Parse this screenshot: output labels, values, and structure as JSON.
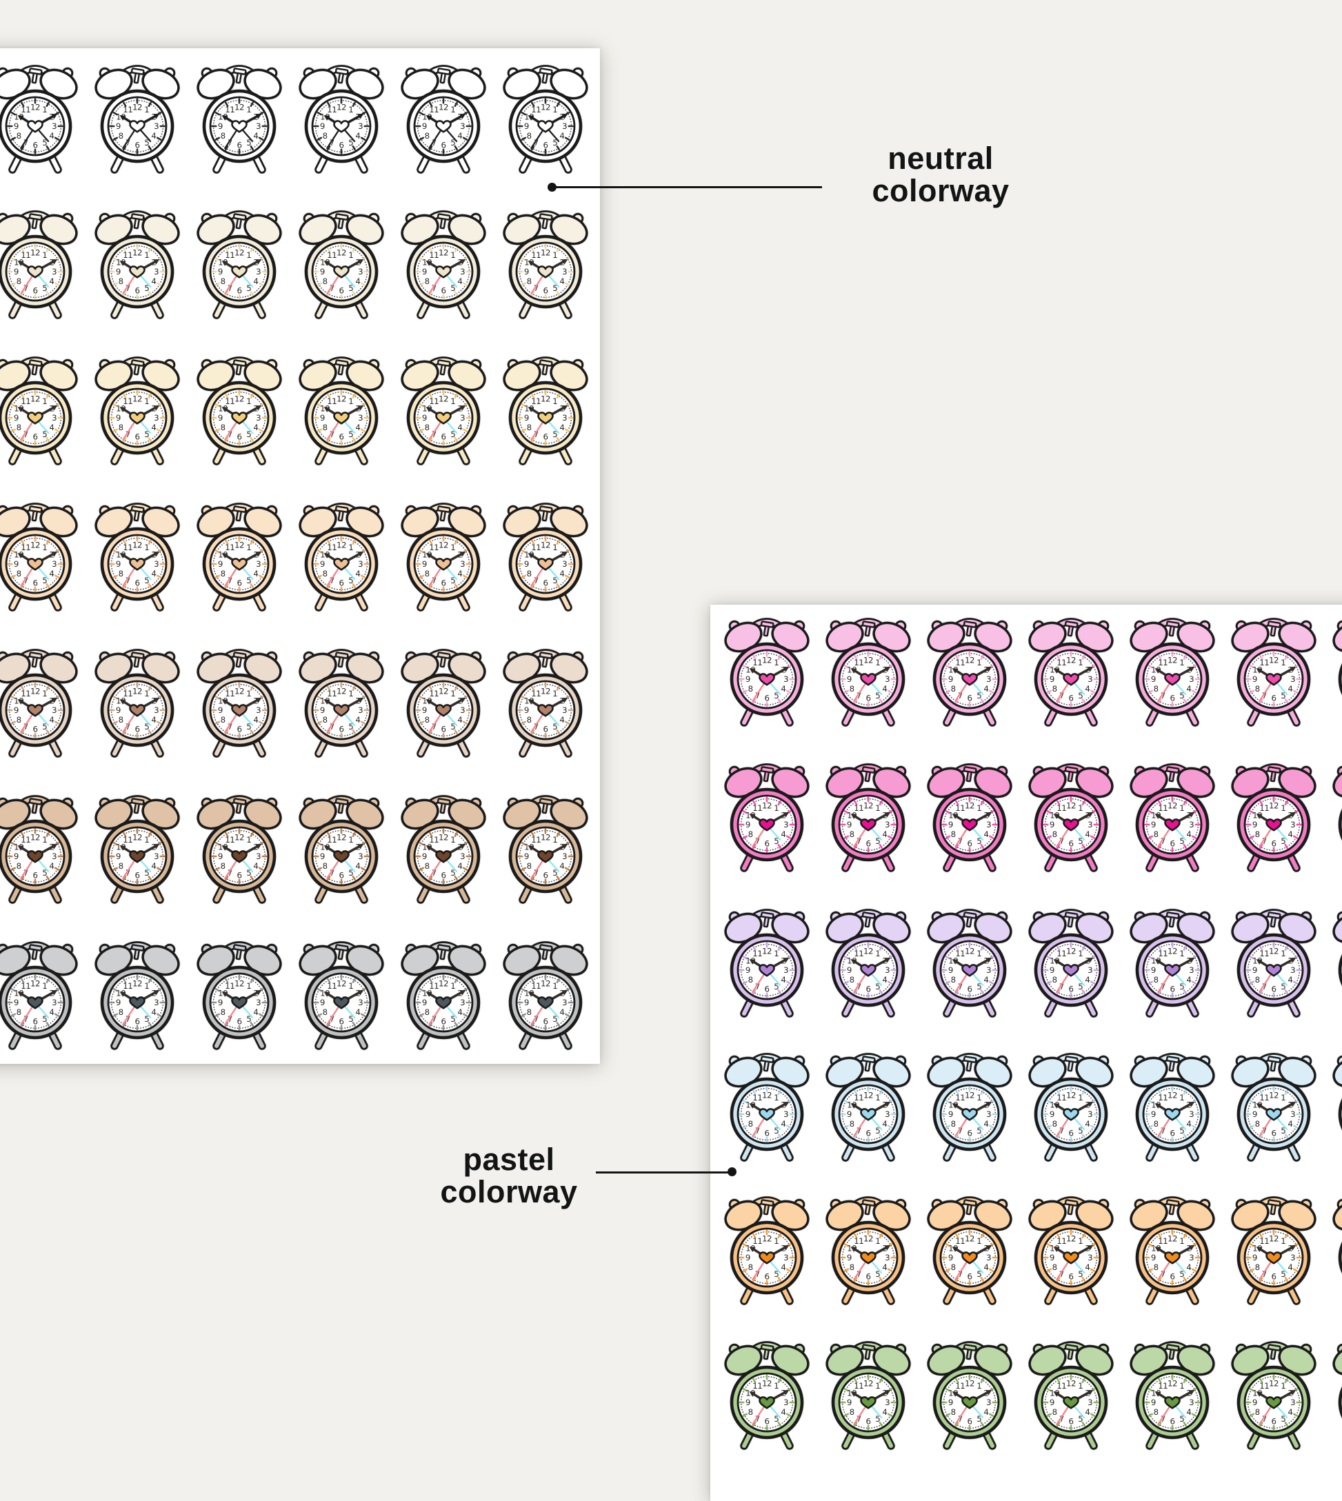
{
  "page": {
    "background_color": "#f2f1ed",
    "sheet_color": "#ffffff"
  },
  "callouts": {
    "neutral": {
      "line1": "neutral",
      "line2": "colorway"
    },
    "pastel": {
      "line1": "pastel",
      "line2": "colorway"
    }
  },
  "clock": {
    "numerals": [
      "12",
      "1",
      "2",
      "3",
      "4",
      "5",
      "6",
      "7",
      "8",
      "9",
      "10",
      "11"
    ],
    "time_shown": "10:10",
    "second_hand_points_to": "7",
    "alarm_hand_points_to": "4-5",
    "hour_hand_angle_deg": 302,
    "minute_hand_angle_deg": 61,
    "second_hand_angle_deg": 213,
    "alarm_hand_angle_deg": 139,
    "outline_color": "#1b1b1b",
    "face_color": "#ffffff",
    "numeral_color": "#2e2a27",
    "minute_dot_color": "#4a4a4a",
    "hand_color": "#332e2a",
    "second_hand_color": "#f7848f",
    "alarm_hand_color": "#8ce9f4"
  },
  "sheets": [
    {
      "id": "neutral",
      "name": "neutral colorway sticker sheet",
      "columns": 6,
      "rows": [
        {
          "name": "black-and-white",
          "body": "#ffffff",
          "bell": "#ffffff",
          "accent": "#2b2b2b",
          "heart": "#ffffff",
          "second": "#222222",
          "alarm": "#222222",
          "hands": "#1f1f1f"
        },
        {
          "name": "ivory",
          "body": "#f2ecd9",
          "bell": "#f6f1e3",
          "accent": "#ecd9a4",
          "heart": "#efe5c8"
        },
        {
          "name": "cream",
          "body": "#f7e9c4",
          "bell": "#f9eed2",
          "accent": "#f3c261",
          "heart": "#f3cf7d"
        },
        {
          "name": "peach",
          "body": "#f9dcba",
          "bell": "#fae4c9",
          "accent": "#f3a75d",
          "heart": "#eec094"
        },
        {
          "name": "taupe",
          "body": "#e7d5c5",
          "bell": "#ecdcce",
          "accent": "#d2a67c",
          "heart": "#b2836a"
        },
        {
          "name": "tan-brown",
          "body": "#d9b897",
          "bell": "#e0c3a7",
          "accent": "#bd7f47",
          "heart": "#71452a"
        },
        {
          "name": "gray",
          "body": "#bfc1c2",
          "bell": "#cdcfd1",
          "accent": "#909294",
          "heart": "#4e585f"
        }
      ]
    },
    {
      "id": "pastel",
      "name": "pastel colorway sticker sheet",
      "columns": 7,
      "rows": [
        {
          "name": "light-pink",
          "body": "#f8aedd",
          "bell": "#f9c0e5",
          "accent": "#fb9fd8",
          "heart": "#f24bae"
        },
        {
          "name": "hot-pink",
          "body": "#f47cc4",
          "bell": "#f79cd2",
          "accent": "#f74db4",
          "heart": "#ea0f93"
        },
        {
          "name": "lavender",
          "body": "#d8c1ec",
          "bell": "#e3d3f4",
          "accent": "#c8a3e5",
          "heart": "#b483d7"
        },
        {
          "name": "light-blue",
          "body": "#cee6f2",
          "bell": "#dbeef7",
          "accent": "#a8d8ec",
          "heart": "#9cd8ef"
        },
        {
          "name": "orange",
          "body": "#f8c185",
          "bell": "#fbd3a4",
          "accent": "#f5a03a",
          "heart": "#f18c1d"
        },
        {
          "name": "green",
          "body": "#abcd90",
          "bell": "#bdd8a7",
          "accent": "#85b35d",
          "heart": "#679b3e"
        }
      ]
    }
  ]
}
